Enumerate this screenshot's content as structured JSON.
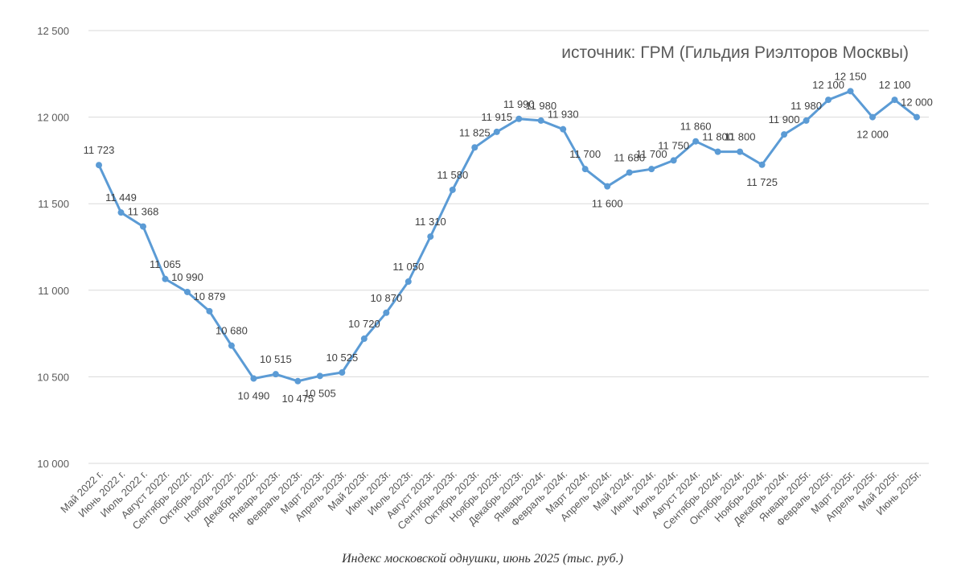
{
  "chart_data": {
    "type": "line",
    "source_note": "источник: ГРМ (Гильдия Риэлторов Москвы)",
    "caption": "Индекс московской однушки, июнь 2025 (тыс. руб.)",
    "ylim": [
      10000,
      12500
    ],
    "yticks": [
      10000,
      10500,
      11000,
      11500,
      12000,
      12500
    ],
    "ytick_labels": [
      "10 000",
      "10 500",
      "11 000",
      "11 500",
      "12 000",
      "12 500"
    ],
    "grid": true,
    "line_color": "#5b9bd5",
    "categories": [
      "Май 2022 г.",
      "Июнь 2022 г.",
      "Июль 2022 г.",
      "Август 2022г.",
      "Сентябрь 2022г.",
      "Октябрь 2022г.",
      "Ноябрь 2022г.",
      "Декабрь 2022г.",
      "Январь 2023г.",
      "Февраль 2023г.",
      "Март 2023г.",
      "Апрель 2023г.",
      "Май 2023г.",
      "Июнь 2023г.",
      "Июль 2023г.",
      "Август 2023г.",
      "Сентябрь 2023г.",
      "Октябрь 2023г.",
      "Ноябрь 2023г.",
      "Декабрь 2023г.",
      "Январь 2024г.",
      "Февраль 2024г.",
      "Март 2024г.",
      "Апрель 2024г.",
      "Май 2024г.",
      "Июнь 2024г.",
      "Июль 2024г.",
      "Август 2024г.",
      "Сентябрь 2024г.",
      "Октябрь 2024г.",
      "Ноябрь 2024г.",
      "Декабрь 2024г.",
      "Январь 2025г.",
      "Февраль 2025г.",
      "Март 2025г.",
      "Апрель 2025г.",
      "Май 2025г.",
      "Июнь 2025г."
    ],
    "values": [
      11723,
      11449,
      11368,
      11065,
      10990,
      10879,
      10680,
      10490,
      10515,
      10475,
      10505,
      10525,
      10720,
      10870,
      11050,
      11310,
      11580,
      11825,
      11915,
      11990,
      11980,
      11930,
      11700,
      11600,
      11680,
      11700,
      11750,
      11860,
      11800,
      11800,
      11725,
      11900,
      11980,
      12100,
      12150,
      12000,
      12100,
      12000
    ],
    "data_labels": [
      "11 723",
      "11 449",
      "11 368",
      "11 065",
      "10 990",
      "10 879",
      "10 680",
      "10 490",
      "10 515",
      "10 475",
      "10 505",
      "10 525",
      "10 720",
      "10 870",
      "11 050",
      "11 310",
      "11 580",
      "11 825",
      "11 915",
      "11 990",
      "11 980",
      "11 930",
      "11 700",
      "11 600",
      "11 680",
      "11 700",
      "11 750",
      "11 860",
      "11 800",
      "11 800",
      "11 725",
      "11 900",
      "11 980",
      "12 100",
      "12 150",
      "12 000",
      "12 100",
      "12 000"
    ],
    "label_below": [
      false,
      false,
      false,
      false,
      false,
      false,
      false,
      true,
      false,
      true,
      true,
      false,
      false,
      false,
      false,
      false,
      false,
      false,
      false,
      false,
      false,
      false,
      false,
      true,
      false,
      false,
      false,
      false,
      false,
      false,
      true,
      false,
      false,
      false,
      false,
      true,
      false,
      false
    ]
  }
}
